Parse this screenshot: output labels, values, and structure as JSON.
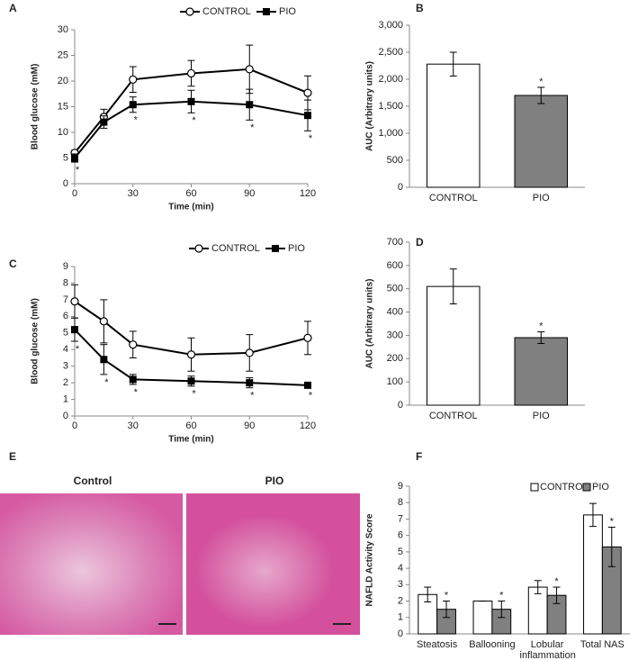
{
  "chart_data": [
    {
      "type": "line",
      "label": "A",
      "xlabel": "Time (min)",
      "ylabel": "Blood glucose  (mM)",
      "x": [
        0,
        15,
        30,
        60,
        90,
        120
      ],
      "xlim": [
        0,
        120
      ],
      "xticks": [
        0,
        30,
        60,
        90,
        120
      ],
      "ylim": [
        0,
        30
      ],
      "yticks": [
        0,
        5,
        10,
        15,
        20,
        25,
        30
      ],
      "legend": "top-right",
      "series": [
        {
          "name": "CONTROL",
          "color": "#000000",
          "marker": "circle",
          "values": [
            6,
            13,
            20.3,
            21.5,
            22.3,
            17.7
          ],
          "errors": [
            0.5,
            1.5,
            2.5,
            2.5,
            4.7,
            3.3
          ]
        },
        {
          "name": "PIO",
          "color": "#000000",
          "marker": "square",
          "values": [
            5,
            12,
            15.4,
            16,
            15.4,
            13.3
          ],
          "errors": [
            0.8,
            1.2,
            1.5,
            2.2,
            3,
            3
          ],
          "significance": [
            "*",
            null,
            "*",
            "*",
            "*",
            "*"
          ]
        }
      ]
    },
    {
      "type": "bar",
      "label": "B",
      "ylabel": "AUC (Arbitrary units)",
      "categories": [
        "CONTROL",
        "PIO"
      ],
      "values": [
        2280,
        1700
      ],
      "errors": [
        220,
        150
      ],
      "colors": [
        "#ffffff",
        "#808080"
      ],
      "significance": [
        null,
        "*"
      ],
      "ylim": [
        0,
        3000
      ],
      "yticks": [
        0,
        500,
        {
          "value": 1000,
          "label": "1,000"
        },
        {
          "value": 1500,
          "label": "1,500"
        },
        {
          "value": 2000,
          "label": "2,000"
        },
        {
          "value": 2500,
          "label": "2,500"
        },
        {
          "value": 3000,
          "label": "3,000"
        }
      ]
    },
    {
      "type": "line",
      "label": "C",
      "xlabel": "Time (min)",
      "ylabel": "Blood glucose (mM)",
      "x": [
        0,
        15,
        30,
        60,
        90,
        120
      ],
      "xlim": [
        0,
        120
      ],
      "xticks": [
        0,
        30,
        60,
        90,
        120
      ],
      "ylim": [
        0,
        9
      ],
      "yticks": [
        0,
        1,
        2,
        3,
        4,
        5,
        6,
        7,
        8,
        9
      ],
      "legend": "top-right",
      "series": [
        {
          "name": "CONTROL",
          "color": "#000000",
          "marker": "circle",
          "values": [
            6.9,
            5.7,
            4.3,
            3.7,
            3.8,
            4.7
          ],
          "errors": [
            1,
            1.3,
            0.8,
            1,
            1.1,
            1
          ]
        },
        {
          "name": "PIO",
          "color": "#000000",
          "marker": "square",
          "values": [
            5.2,
            3.4,
            2.2,
            2.1,
            2,
            1.85
          ],
          "errors": [
            0.7,
            0.9,
            0.3,
            0.3,
            0.3,
            0.15
          ],
          "significance": [
            "*",
            "*",
            "*",
            "*",
            "*",
            "*"
          ]
        }
      ]
    },
    {
      "type": "bar",
      "label": "D",
      "ylabel": "AUC (Arbitrary units)",
      "categories": [
        "CONTROL",
        "PIO"
      ],
      "values": [
        510,
        290
      ],
      "errors": [
        75,
        25
      ],
      "colors": [
        "#ffffff",
        "#808080"
      ],
      "significance": [
        null,
        "*"
      ],
      "ylim": [
        0,
        700
      ],
      "yticks": [
        0,
        100,
        200,
        300,
        400,
        500,
        600,
        700
      ]
    },
    {
      "type": "grouped_bar",
      "label": "F",
      "ylabel": "NAFLD Activity Score",
      "categories": [
        "Steatosis",
        "Ballooning",
        "Lobular inflammation",
        "Total NAS"
      ],
      "ylim": [
        0,
        9
      ],
      "yticks": [
        0,
        1,
        2,
        3,
        4,
        5,
        6,
        7,
        8,
        9
      ],
      "legend": "top-right",
      "series": [
        {
          "name": "CONTROL",
          "color": "#ffffff",
          "values": [
            2.4,
            2,
            2.85,
            7.25
          ],
          "errors": [
            0.45,
            0,
            0.4,
            0.7
          ]
        },
        {
          "name": "PIO",
          "color": "#808080",
          "values": [
            1.5,
            1.5,
            2.35,
            5.3
          ],
          "errors": [
            0.5,
            0.5,
            0.5,
            1.2
          ],
          "significance": [
            "*",
            "*",
            "*",
            "*"
          ]
        }
      ]
    }
  ],
  "histology": {
    "label": "E",
    "titles": [
      "Control",
      "PIO"
    ]
  }
}
